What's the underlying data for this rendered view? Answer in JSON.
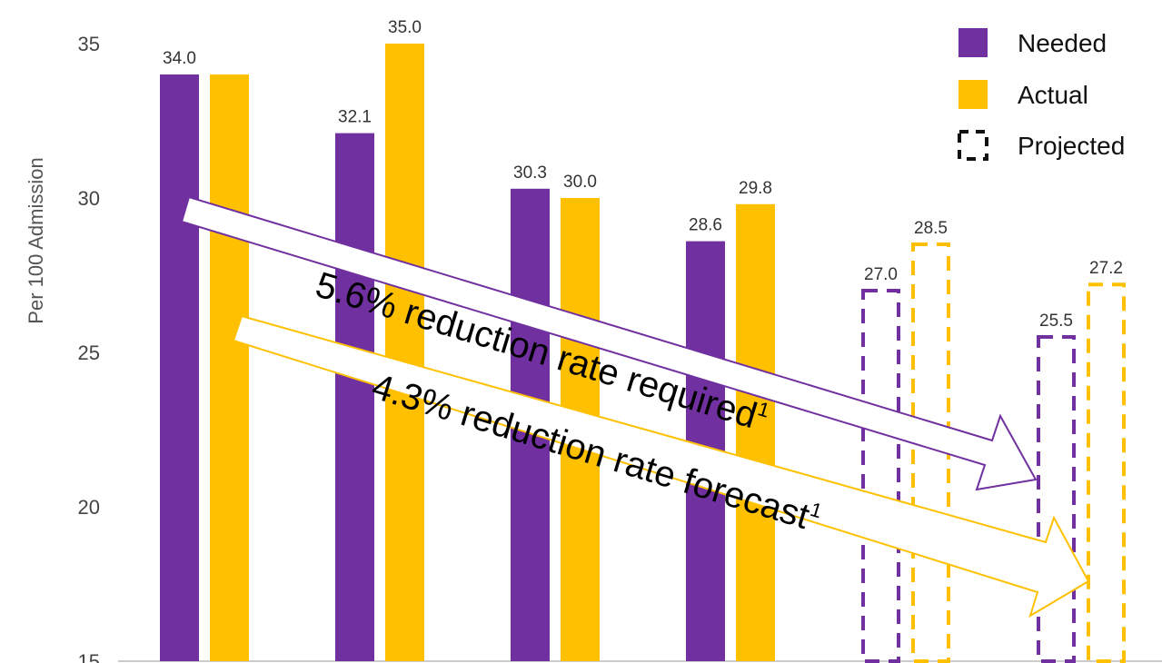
{
  "chart_data": {
    "type": "bar",
    "title": "",
    "ylabel": "Per 100 Admission",
    "ylim": [
      15,
      36
    ],
    "yticks": [
      15,
      20,
      25,
      30,
      35
    ],
    "categories": [
      "",
      "",
      "",
      "",
      "",
      ""
    ],
    "projected_from_index": 4,
    "series": [
      {
        "name": "Needed",
        "color": "#7030A0",
        "values": [
          34.0,
          32.1,
          30.3,
          28.6,
          27.0,
          25.5
        ]
      },
      {
        "name": "Actual",
        "color": "#FFC000",
        "values": [
          34.0,
          35.0,
          30.0,
          29.8,
          28.5,
          27.2
        ]
      }
    ],
    "data_labels": [
      [
        "34.0",
        "32.1",
        "30.3",
        "28.6",
        "27.0",
        "25.5"
      ],
      [
        "",
        "35.0",
        "30.0",
        "29.8",
        "28.5",
        "27.2"
      ]
    ],
    "legend": {
      "placement": "top-right",
      "entries": [
        "Needed",
        "Actual",
        "Projected"
      ]
    },
    "annotations": [
      {
        "text": "5.6% reduction rate required",
        "sup": "1",
        "color": "#7030A0"
      },
      {
        "text": "4.3% reduction rate forecast",
        "sup": "1",
        "color": "#FFC000"
      }
    ]
  }
}
